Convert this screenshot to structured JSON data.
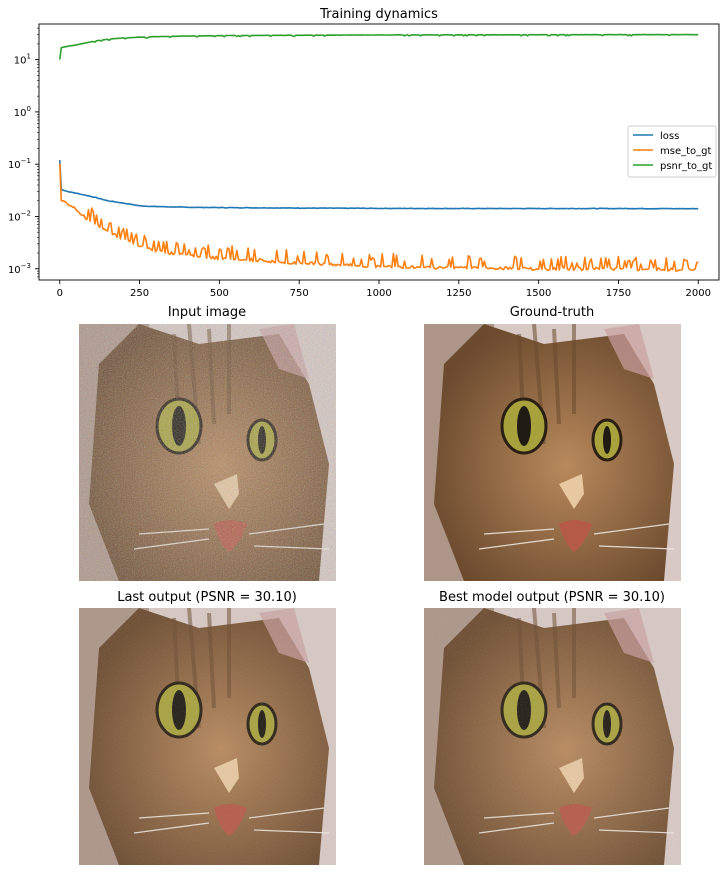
{
  "figure": {
    "panels": {
      "input": {
        "title": "Input image",
        "noise": "heavy"
      },
      "gt": {
        "title": "Ground-truth",
        "noise": "none"
      },
      "last": {
        "title": "Last output (PSNR = 30.10)",
        "noise": "light"
      },
      "best": {
        "title": "Best model output (PSNR = 30.10)",
        "noise": "light"
      }
    },
    "colors": {
      "fur": "#b8895c",
      "fur_dark": "#6b4a2e",
      "eye": "#a8a23c",
      "pupil": "#1f1a12",
      "nose": "#b55a46",
      "background": "#d8c9c4"
    }
  },
  "chart_data": {
    "type": "line",
    "title": "Training dynamics",
    "xlabel": "",
    "ylabel": "",
    "xlim": [
      -65,
      2065
    ],
    "ylim": [
      0.00061,
      48
    ],
    "yscale": "log",
    "x_ticks": [
      0,
      250,
      500,
      750,
      1000,
      1250,
      1500,
      1750,
      2000
    ],
    "y_ticks": [
      {
        "value": 0.001,
        "base": "10",
        "exp": "−3"
      },
      {
        "value": 0.01,
        "base": "10",
        "exp": "−2"
      },
      {
        "value": 0.1,
        "base": "10",
        "exp": "−1"
      },
      {
        "value": 1,
        "base": "10",
        "exp": "0"
      },
      {
        "value": 10,
        "base": "10",
        "exp": "1"
      }
    ],
    "grid": false,
    "legend": "center-right",
    "series": [
      {
        "name": "loss",
        "color": "#1f77b4",
        "x": [
          0,
          5,
          25,
          50,
          75,
          100,
          125,
          150,
          200,
          250,
          300,
          400,
          500,
          750,
          1000,
          1250,
          1500,
          1750,
          2000
        ],
        "y": [
          0.12,
          0.033,
          0.03,
          0.028,
          0.026,
          0.024,
          0.022,
          0.02,
          0.018,
          0.016,
          0.0155,
          0.015,
          0.0148,
          0.0145,
          0.0143,
          0.0142,
          0.0142,
          0.0142,
          0.0141
        ]
      },
      {
        "name": "mse_to_gt",
        "color": "#ff7f0e",
        "x": [
          0,
          5,
          25,
          50,
          75,
          100,
          125,
          150,
          200,
          250,
          300,
          400,
          500,
          750,
          1000,
          1250,
          1500,
          1750,
          2000
        ],
        "y": [
          0.1,
          0.02,
          0.017,
          0.014,
          0.01,
          0.008,
          0.0065,
          0.005,
          0.0037,
          0.0028,
          0.0022,
          0.0018,
          0.0016,
          0.0013,
          0.0011,
          0.00105,
          0.001,
          0.001,
          0.00095
        ]
      },
      {
        "name": "psnr_to_gt",
        "color": "#2ca02c",
        "x": [
          0,
          5,
          25,
          50,
          75,
          100,
          125,
          150,
          200,
          250,
          300,
          400,
          500,
          750,
          1000,
          1250,
          1500,
          1750,
          2000
        ],
        "y": [
          10,
          17,
          18,
          19,
          20.5,
          22,
          23.5,
          24.5,
          26,
          26.8,
          27.5,
          28.2,
          28.8,
          29.3,
          29.6,
          29.8,
          29.9,
          30,
          30.1
        ]
      }
    ]
  }
}
